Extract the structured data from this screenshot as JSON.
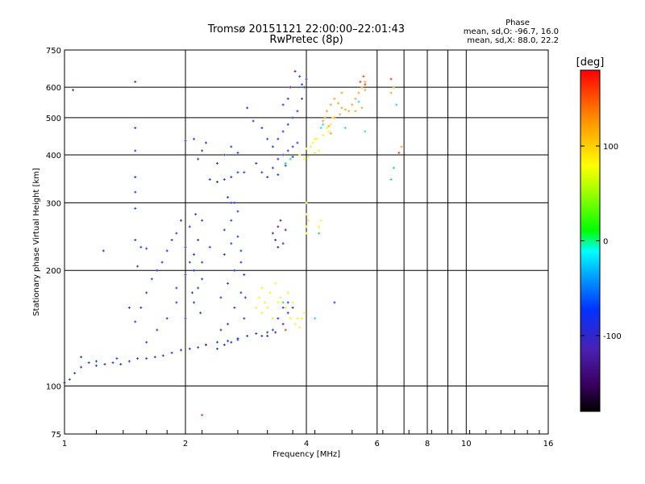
{
  "chart_data": {
    "type": "scatter",
    "title": "Tromsø 20151121 22:00:00–22:01:43",
    "subtitle": "RwPretec (8p)",
    "xlabel": "Frequency [MHz]",
    "ylabel": "Stationary phase Virtual Height [km]",
    "x_scale": "log",
    "y_scale": "log",
    "xlim": [
      1,
      16
    ],
    "ylim": [
      75,
      750
    ],
    "x_ticks": [
      1,
      2,
      4,
      6,
      8,
      10,
      16
    ],
    "y_ticks": [
      75,
      100,
      200,
      300,
      400,
      500,
      600,
      750
    ],
    "x_tick_labels": [
      "1",
      "2",
      "4",
      "6",
      "8",
      "10",
      "16"
    ],
    "y_tick_labels": [
      "75",
      "100",
      "200",
      "300",
      "400",
      "500",
      "600",
      "750"
    ],
    "grid": true,
    "info": {
      "heading": "Phase",
      "line_o": "mean, sd,O: -96.7, 16.0",
      "line_x": "mean, sd,X:  88.0, 22.2"
    },
    "colorbar": {
      "label": "[deg]",
      "range": [
        -180,
        180
      ],
      "ticks": [
        100,
        0,
        -100
      ],
      "tick_labels": [
        "100",
        "0",
        "-100"
      ]
    },
    "series": [
      {
        "color": "#1f3fe6",
        "points": [
          [
            1.0,
            102
          ],
          [
            1.03,
            104
          ],
          [
            1.06,
            108
          ],
          [
            1.1,
            112
          ],
          [
            1.15,
            115
          ],
          [
            1.2,
            113
          ],
          [
            1.26,
            114
          ],
          [
            1.32,
            115
          ],
          [
            1.38,
            114
          ],
          [
            1.45,
            116
          ],
          [
            1.52,
            118
          ],
          [
            1.6,
            118
          ],
          [
            1.68,
            119
          ],
          [
            1.76,
            120
          ],
          [
            1.85,
            122
          ],
          [
            1.95,
            124
          ],
          [
            2.05,
            125
          ],
          [
            2.15,
            126
          ],
          [
            2.25,
            128
          ],
          [
            2.4,
            130
          ],
          [
            2.55,
            131
          ],
          [
            2.7,
            133
          ],
          [
            2.85,
            135
          ],
          [
            3.0,
            137
          ],
          [
            1.5,
            147
          ],
          [
            1.55,
            160
          ],
          [
            1.6,
            175
          ],
          [
            1.65,
            190
          ],
          [
            1.7,
            200
          ],
          [
            1.75,
            210
          ],
          [
            1.8,
            225
          ],
          [
            1.85,
            240
          ],
          [
            1.9,
            250
          ],
          [
            1.95,
            270
          ],
          [
            2.0,
            230
          ],
          [
            2.05,
            210
          ],
          [
            2.1,
            200
          ],
          [
            2.15,
            180
          ],
          [
            1.9,
            165
          ],
          [
            1.8,
            150
          ],
          [
            1.7,
            140
          ],
          [
            1.6,
            130
          ],
          [
            2.0,
            150
          ],
          [
            2.1,
            165
          ],
          [
            2.2,
            190
          ],
          [
            2.05,
            260
          ],
          [
            2.12,
            280
          ],
          [
            2.2,
            270
          ],
          [
            2.15,
            240
          ],
          [
            2.1,
            220
          ],
          [
            1.55,
            230
          ],
          [
            1.5,
            240
          ],
          [
            1.6,
            228
          ],
          [
            1.52,
            205
          ],
          [
            1.45,
            160
          ],
          [
            2.3,
            345
          ],
          [
            2.4,
            340
          ],
          [
            2.5,
            345
          ],
          [
            2.6,
            350
          ],
          [
            2.7,
            360
          ],
          [
            2.8,
            360
          ],
          [
            2.4,
            380
          ],
          [
            2.5,
            400
          ],
          [
            2.6,
            420
          ],
          [
            2.7,
            405
          ],
          [
            2.2,
            410
          ],
          [
            2.25,
            430
          ],
          [
            2.1,
            440
          ],
          [
            2.0,
            435
          ],
          [
            2.15,
            390
          ],
          [
            1.5,
            470
          ],
          [
            1.5,
            410
          ],
          [
            1.5,
            350
          ],
          [
            1.5,
            320
          ],
          [
            1.5,
            290
          ],
          [
            1.5,
            620
          ],
          [
            1.05,
            590
          ],
          [
            2.45,
            140
          ],
          [
            2.55,
            145
          ],
          [
            2.65,
            160
          ],
          [
            2.75,
            175
          ],
          [
            2.45,
            170
          ],
          [
            2.55,
            185
          ],
          [
            2.65,
            200
          ],
          [
            2.75,
            210
          ],
          [
            2.5,
            220
          ],
          [
            2.6,
            235
          ],
          [
            2.7,
            245
          ],
          [
            2.5,
            255
          ],
          [
            2.6,
            270
          ],
          [
            2.7,
            285
          ],
          [
            2.6,
            300
          ],
          [
            2.55,
            310
          ],
          [
            2.65,
            300
          ],
          [
            2.75,
            225
          ],
          [
            2.8,
            195
          ],
          [
            2.82,
            170
          ],
          [
            2.8,
            150
          ],
          [
            2.4,
            125
          ],
          [
            2.5,
            128
          ],
          [
            2.6,
            130
          ],
          [
            2.7,
            132
          ],
          [
            3.1,
            135
          ],
          [
            3.2,
            138
          ],
          [
            3.3,
            140
          ],
          [
            3.4,
            150
          ],
          [
            3.5,
            160
          ],
          [
            3.6,
            165
          ],
          [
            3.0,
            380
          ],
          [
            3.1,
            360
          ],
          [
            3.2,
            350
          ],
          [
            3.3,
            370
          ],
          [
            3.4,
            390
          ],
          [
            3.5,
            400
          ],
          [
            3.6,
            410
          ],
          [
            3.7,
            420
          ],
          [
            3.8,
            430
          ],
          [
            3.3,
            420
          ],
          [
            3.4,
            440
          ],
          [
            3.5,
            460
          ],
          [
            3.6,
            480
          ],
          [
            3.7,
            500
          ],
          [
            3.8,
            520
          ],
          [
            3.9,
            560
          ],
          [
            3.95,
            600
          ],
          [
            4.0,
            630
          ],
          [
            3.5,
            540
          ],
          [
            3.6,
            560
          ],
          [
            3.85,
            640
          ],
          [
            3.9,
            610
          ],
          [
            3.1,
            470
          ],
          [
            3.2,
            440
          ],
          [
            2.95,
            490
          ],
          [
            2.85,
            530
          ],
          [
            3.4,
            355
          ],
          [
            3.55,
            375
          ],
          [
            3.7,
            395
          ],
          [
            4.7,
            165
          ],
          [
            1.1,
            119
          ],
          [
            1.2,
            116
          ],
          [
            1.35,
            118
          ],
          [
            1.9,
            180
          ],
          [
            2.2,
            210
          ],
          [
            2.3,
            230
          ],
          [
            2.0,
            195
          ],
          [
            2.08,
            175
          ],
          [
            2.18,
            155
          ]
        ]
      },
      {
        "color": "#5a20a8",
        "points": [
          [
            3.2,
            135
          ],
          [
            3.35,
            138
          ],
          [
            3.5,
            145
          ],
          [
            3.6,
            155
          ],
          [
            3.7,
            160
          ],
          [
            3.3,
            250
          ],
          [
            3.35,
            240
          ],
          [
            3.4,
            260
          ],
          [
            3.5,
            235
          ],
          [
            3.55,
            255
          ],
          [
            3.4,
            230
          ],
          [
            3.45,
            270
          ],
          [
            1.25,
            225
          ],
          [
            2.25,
            128
          ],
          [
            3.65,
            600
          ],
          [
            3.75,
            660
          ]
        ]
      },
      {
        "color": "#ffef20",
        "points": [
          [
            3.05,
            170
          ],
          [
            3.1,
            180
          ],
          [
            3.15,
            165
          ],
          [
            3.25,
            175
          ],
          [
            3.35,
            185
          ],
          [
            3.45,
            170
          ],
          [
            3.55,
            160
          ],
          [
            3.65,
            150
          ],
          [
            3.75,
            145
          ],
          [
            3.85,
            142
          ],
          [
            3.9,
            150
          ],
          [
            3.95,
            155
          ],
          [
            3.1,
            155
          ],
          [
            3.2,
            160
          ],
          [
            3.3,
            150
          ],
          [
            3.4,
            165
          ],
          [
            3.0,
            160
          ],
          [
            3.6,
            175
          ],
          [
            3.7,
            165
          ],
          [
            3.8,
            150
          ],
          [
            4.0,
            415
          ],
          [
            4.1,
            420
          ],
          [
            4.2,
            405
          ],
          [
            4.3,
            410
          ],
          [
            3.85,
            400
          ],
          [
            3.95,
            390
          ],
          [
            4.05,
            395
          ],
          [
            4.15,
            430
          ],
          [
            4.25,
            440
          ],
          [
            4.4,
            450
          ],
          [
            4.55,
            460
          ],
          [
            4.6,
            480
          ],
          [
            4.65,
            500
          ],
          [
            4.5,
            470
          ],
          [
            4.2,
            440
          ],
          [
            4.0,
            260
          ],
          [
            4.0,
            250
          ],
          [
            4.05,
            270
          ],
          [
            4.0,
            300
          ],
          [
            4.0,
            280
          ],
          [
            4.3,
            260
          ],
          [
            4.35,
            270
          ]
        ]
      },
      {
        "color": "#ffa41f",
        "points": [
          [
            4.5,
            520
          ],
          [
            4.6,
            540
          ],
          [
            4.7,
            560
          ],
          [
            4.8,
            545
          ],
          [
            4.9,
            530
          ],
          [
            5.0,
            525
          ],
          [
            5.1,
            520
          ],
          [
            5.2,
            540
          ],
          [
            5.3,
            560
          ],
          [
            5.4,
            580
          ],
          [
            5.5,
            600
          ],
          [
            5.6,
            620
          ],
          [
            4.7,
            500
          ],
          [
            4.85,
            510
          ],
          [
            5.3,
            520
          ],
          [
            5.5,
            530
          ],
          [
            5.6,
            590
          ],
          [
            4.4,
            490
          ],
          [
            4.45,
            500
          ],
          [
            4.55,
            475
          ],
          [
            4.6,
            455
          ],
          [
            6.6,
            600
          ],
          [
            6.5,
            580
          ],
          [
            6.9,
            420
          ],
          [
            4.9,
            580
          ]
        ]
      },
      {
        "color": "#ff3b1a",
        "points": [
          [
            5.45,
            620
          ],
          [
            5.55,
            640
          ],
          [
            5.6,
            610
          ],
          [
            3.55,
            140
          ],
          [
            2.2,
            84
          ],
          [
            6.5,
            630
          ],
          [
            6.8,
            405
          ]
        ]
      },
      {
        "color": "#18e860",
        "points": [
          [
            3.55,
            380
          ],
          [
            3.65,
            390
          ],
          [
            4.3,
            250
          ],
          [
            3.5,
            165
          ],
          [
            6.6,
            370
          ],
          [
            6.5,
            345
          ]
        ]
      },
      {
        "color": "#1fd9f0",
        "points": [
          [
            4.35,
            470
          ],
          [
            4.4,
            480
          ],
          [
            5.4,
            550
          ],
          [
            5.6,
            460
          ],
          [
            6.7,
            540
          ],
          [
            5.0,
            470
          ],
          [
            4.2,
            150
          ]
        ]
      }
    ]
  }
}
